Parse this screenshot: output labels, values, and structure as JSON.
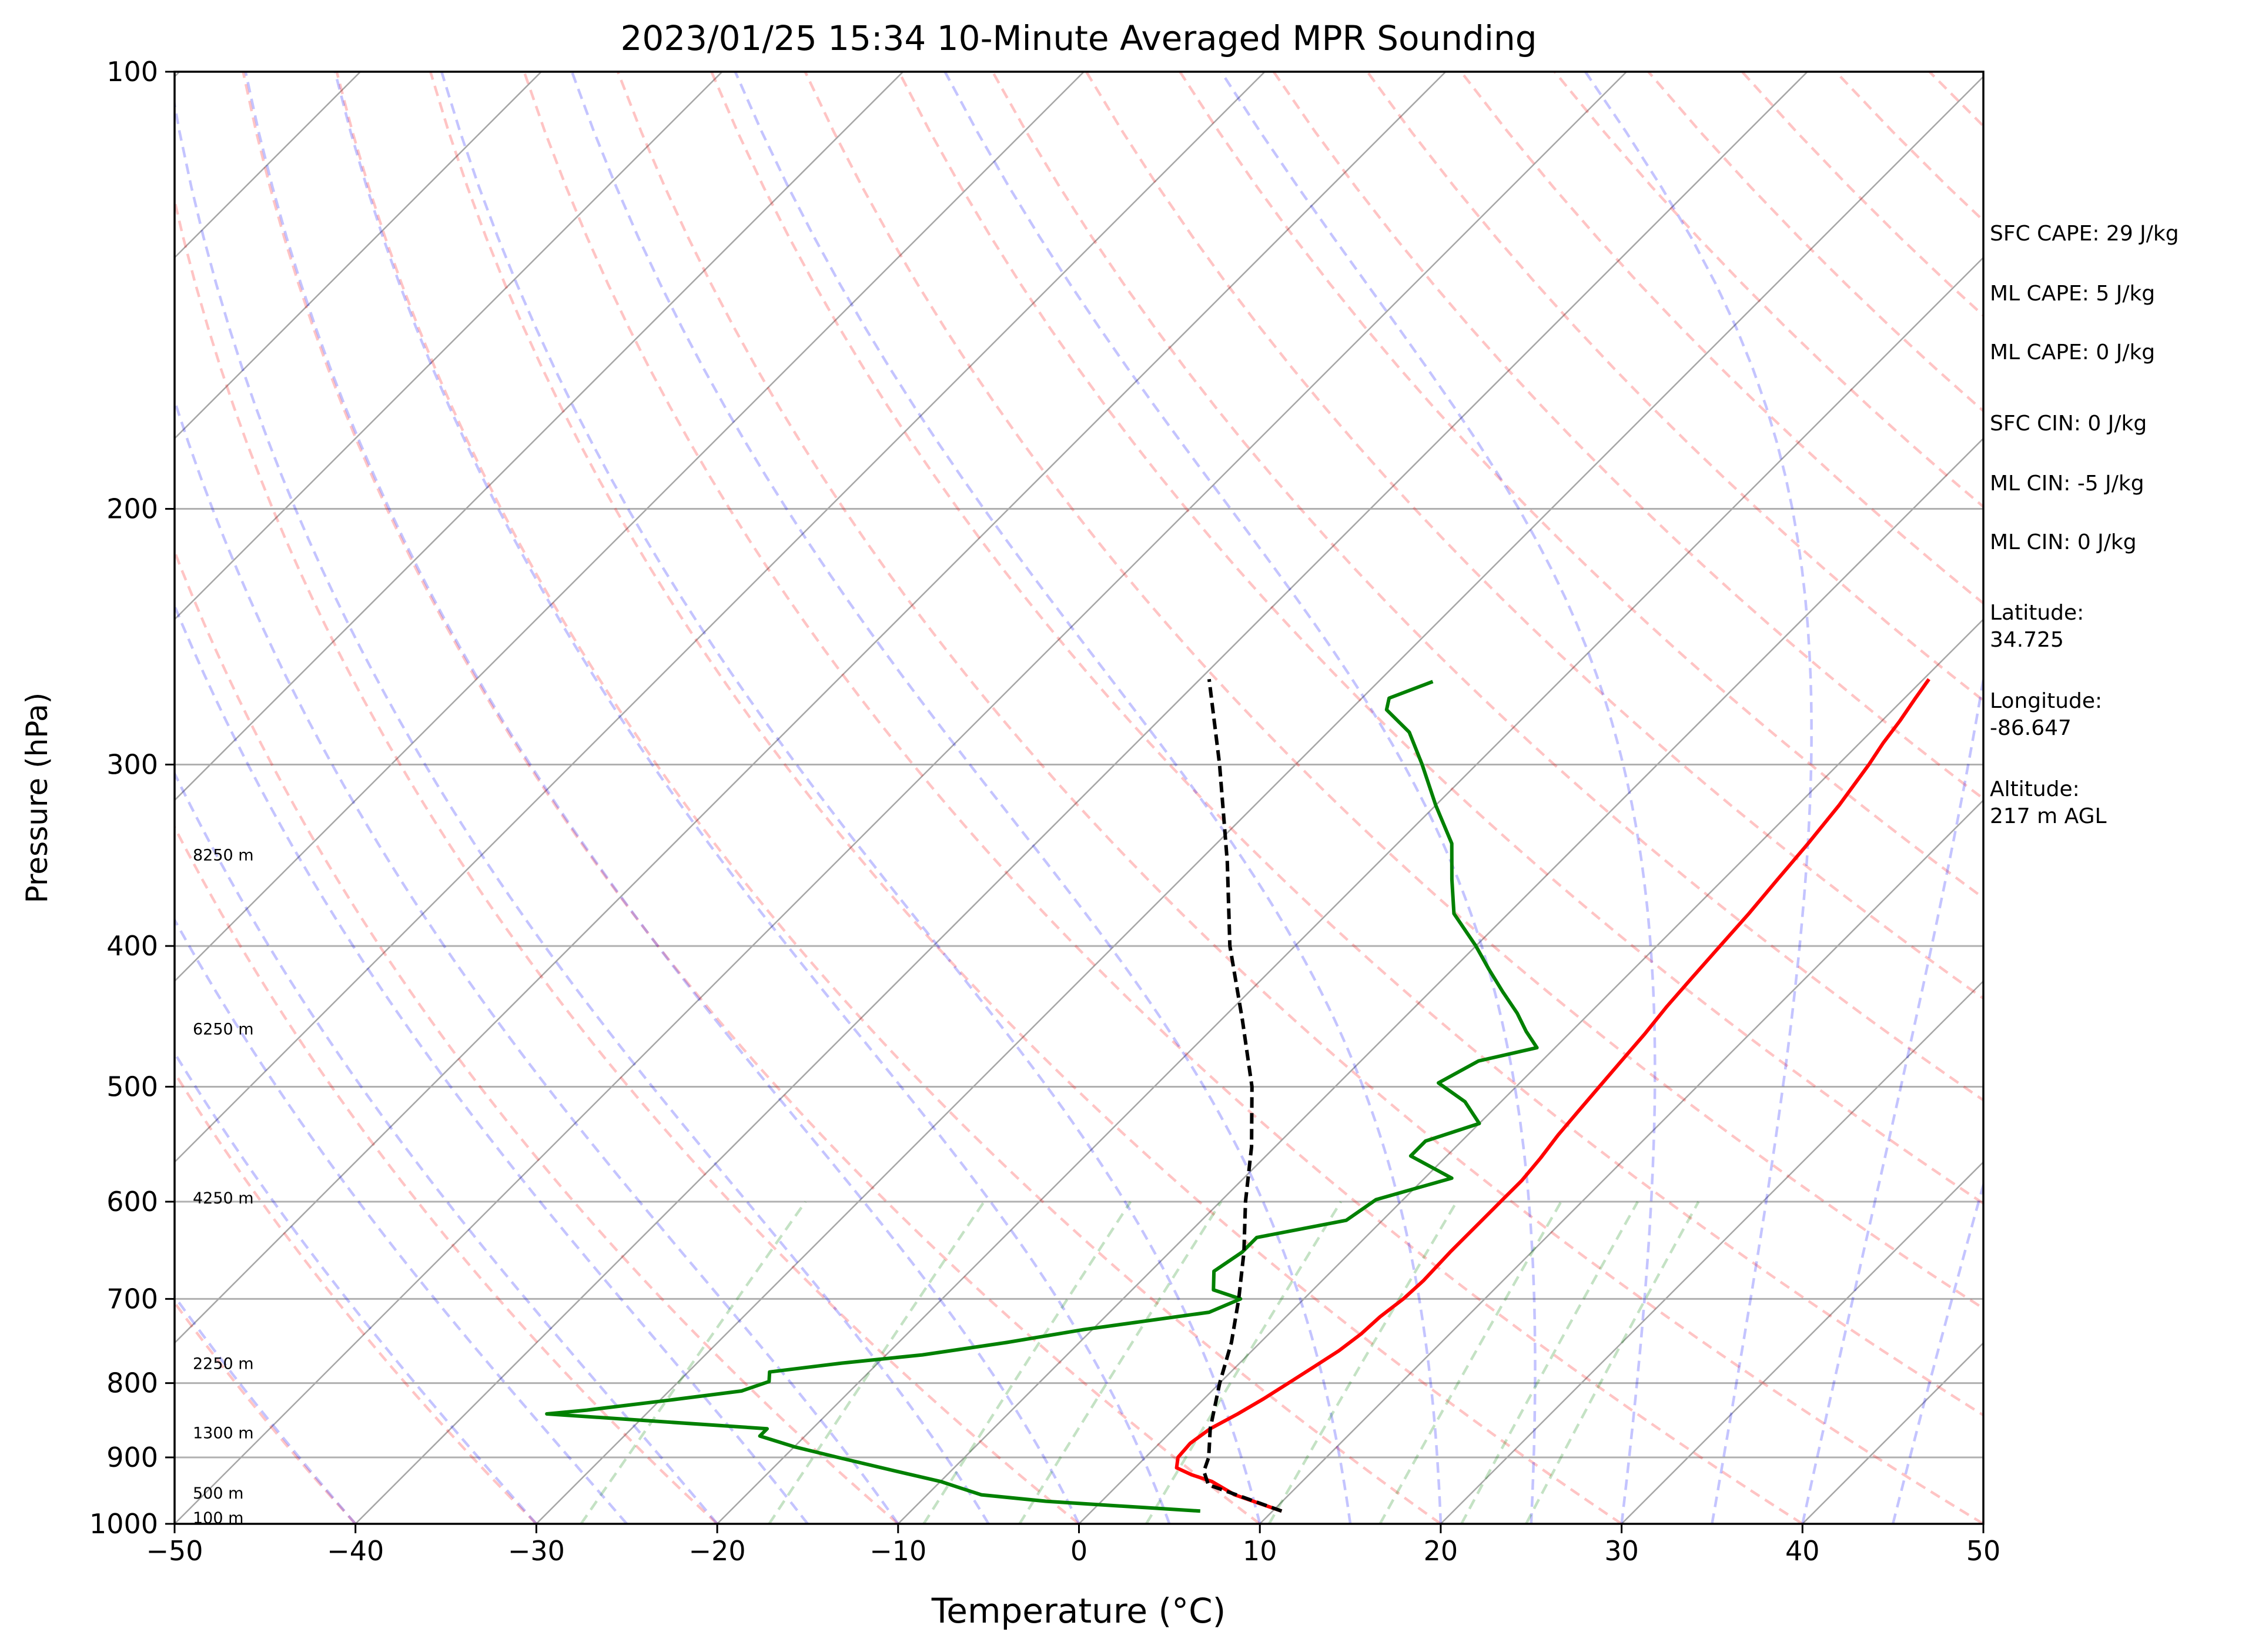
{
  "chart_data": {
    "type": "skew-t",
    "title": "2023/01/25 15:34 10-Minute Averaged MPR Sounding",
    "xlabel": "Temperature (°C)",
    "ylabel": "Pressure (hPa)",
    "xlim": [
      -50,
      50
    ],
    "ylim": [
      1000,
      100
    ],
    "y_scale": "log",
    "x_ticks": [
      "−50",
      "−40",
      "−30",
      "−20",
      "−10",
      "0",
      "10",
      "20",
      "30",
      "40",
      "50"
    ],
    "y_ticks": [
      "100",
      "200",
      "300",
      "400",
      "500",
      "600",
      "700",
      "800",
      "900",
      "1000"
    ],
    "grid": true,
    "height_labels": [
      {
        "text": "100 m",
        "p": 990
      },
      {
        "text": "500 m",
        "p": 952
      },
      {
        "text": "1300 m",
        "p": 865
      },
      {
        "text": "2250 m",
        "p": 775
      },
      {
        "text": "4250 m",
        "p": 596
      },
      {
        "text": "6250 m",
        "p": 456
      },
      {
        "text": "8250 m",
        "p": 346
      }
    ],
    "series": [
      {
        "color": "#ff0000",
        "points": [
          [
            980,
            10.5
          ],
          [
            955,
            7
          ],
          [
            935,
            5
          ],
          [
            925,
            3.5
          ],
          [
            915,
            2.3
          ],
          [
            900,
            1.8
          ],
          [
            880,
            1.7
          ],
          [
            860,
            2
          ],
          [
            840,
            2.7
          ],
          [
            820,
            3.3
          ],
          [
            800,
            3.8
          ],
          [
            780,
            4.3
          ],
          [
            760,
            4.8
          ],
          [
            740,
            5.1
          ],
          [
            720,
            5.2
          ],
          [
            700,
            5.5
          ],
          [
            680,
            5.6
          ],
          [
            650,
            5.5
          ],
          [
            620,
            5.5
          ],
          [
            600,
            5.5
          ],
          [
            580,
            5.5
          ],
          [
            560,
            5.3
          ],
          [
            540,
            5.0
          ],
          [
            520,
            4.8
          ],
          [
            500,
            4.6
          ],
          [
            480,
            4.4
          ],
          [
            460,
            4.2
          ],
          [
            440,
            3.9
          ],
          [
            420,
            3.7
          ],
          [
            400,
            3.5
          ],
          [
            380,
            3.3
          ],
          [
            360,
            3.0
          ],
          [
            340,
            2.7
          ],
          [
            320,
            2.3
          ],
          [
            300,
            1.7
          ],
          [
            290,
            1.3
          ],
          [
            280,
            1.0
          ],
          [
            270,
            0.6
          ],
          [
            262,
            0.3
          ]
        ]
      },
      {
        "color": "#008000",
        "points": [
          [
            980,
            6
          ],
          [
            975,
            3
          ],
          [
            965,
            -3
          ],
          [
            955,
            -7
          ],
          [
            945,
            -8.5
          ],
          [
            935,
            -10
          ],
          [
            920,
            -13
          ],
          [
            900,
            -17
          ],
          [
            885,
            -20
          ],
          [
            870,
            -22.5
          ],
          [
            860,
            -22.5
          ],
          [
            840,
            -35.5
          ],
          [
            835,
            -33.5
          ],
          [
            822,
            -29.5
          ],
          [
            810,
            -26
          ],
          [
            798,
            -25
          ],
          [
            786,
            -25.5
          ],
          [
            775,
            -22
          ],
          [
            765,
            -18
          ],
          [
            750,
            -14
          ],
          [
            735,
            -10.5
          ],
          [
            715,
            -4.5
          ],
          [
            700,
            -3.5
          ],
          [
            690,
            -5.5
          ],
          [
            670,
            -6.5
          ],
          [
            650,
            -6
          ],
          [
            635,
            -6
          ],
          [
            618,
            -2
          ],
          [
            598,
            -1.5
          ],
          [
            578,
            1.5
          ],
          [
            558,
            -2
          ],
          [
            545,
            -2
          ],
          [
            530,
            0
          ],
          [
            512,
            -2
          ],
          [
            497,
            -4.5
          ],
          [
            480,
            -3.5
          ],
          [
            470,
            -1
          ],
          [
            458,
            -2.5
          ],
          [
            445,
            -4
          ],
          [
            430,
            -6
          ],
          [
            415,
            -8
          ],
          [
            400,
            -10
          ],
          [
            380,
            -13
          ],
          [
            360,
            -15
          ],
          [
            340,
            -17
          ],
          [
            320,
            -20
          ],
          [
            300,
            -23
          ],
          [
            285,
            -25.5
          ],
          [
            275,
            -28
          ],
          [
            270,
            -28.5
          ],
          [
            263,
            -27
          ]
        ]
      },
      {
        "color": "#000000",
        "dashed": true,
        "points": [
          [
            980,
            10.5
          ],
          [
            940,
            5
          ],
          [
            920,
            4
          ],
          [
            900,
            3.5
          ],
          [
            860,
            2
          ],
          [
            800,
            0
          ],
          [
            750,
            -1.6
          ],
          [
            700,
            -3.6
          ],
          [
            650,
            -5.9
          ],
          [
            600,
            -8.6
          ],
          [
            550,
            -11.3
          ],
          [
            500,
            -14.6
          ],
          [
            450,
            -18.8
          ],
          [
            400,
            -23.6
          ],
          [
            350,
            -28.4
          ],
          [
            300,
            -34.2
          ],
          [
            262,
            -39.5
          ]
        ]
      }
    ]
  },
  "info": {
    "sfc_cape": "SFC CAPE: 29 J/kg",
    "ml_cape_1": "ML CAPE: 5 J/kg",
    "ml_cape_2": "ML CAPE: 0 J/kg",
    "sfc_cin": "SFC CIN: 0 J/kg",
    "ml_cin_1": "ML CIN: -5 J/kg",
    "ml_cin_2": "ML CIN: 0 J/kg",
    "latitude": "Latitude:\n34.725",
    "longitude": "Longitude:\n-86.647",
    "altitude": "Altitude:\n217 m AGL"
  }
}
